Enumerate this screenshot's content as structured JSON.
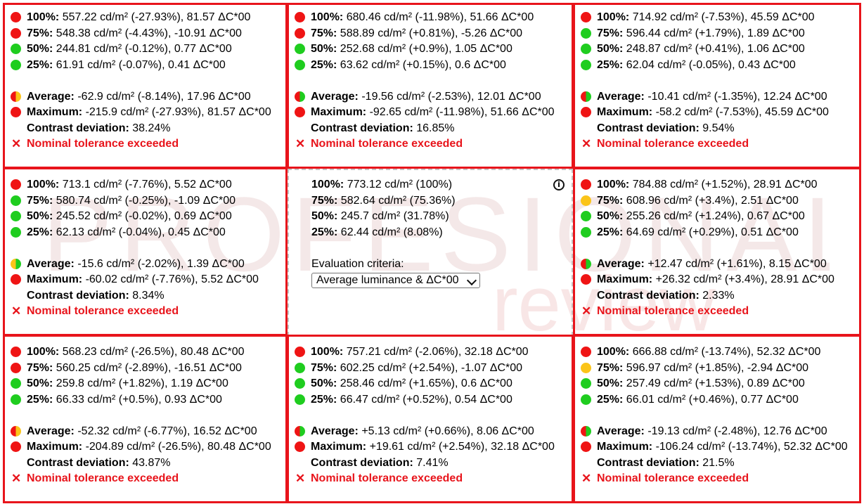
{
  "watermark": {
    "text": "PROFESIONAL",
    "subtext": "review"
  },
  "colors": {
    "fail": "#e8141b",
    "red": "#ef1414",
    "green": "#1fcd1f",
    "yellow": "#fbc419",
    "border": "#e8141b"
  },
  "cells": [
    {
      "id": "top-left",
      "rows": [
        {
          "status": "red",
          "label": "100%:",
          "value": " 557.22 cd/m² (-27.93%), 81.57 ΔC*00"
        },
        {
          "status": "red",
          "label": "75%:",
          "value": " 548.38 cd/m² (-4.43%), -10.91 ΔC*00"
        },
        {
          "status": "green",
          "label": "50%:",
          "value": " 244.81 cd/m² (-0.12%), 0.77 ΔC*00"
        },
        {
          "status": "green",
          "label": "25%:",
          "value": " 61.91 cd/m² (-0.07%), 0.41 ΔC*00"
        }
      ],
      "average": {
        "status": "split-ry",
        "label": "Average:",
        "value": " -62.9 cd/m² (-8.14%), 17.96 ΔC*00"
      },
      "maximum": {
        "status": "red",
        "label": "Maximum:",
        "value": " -215.9 cd/m² (-27.93%), 81.57 ΔC*00"
      },
      "contrast": {
        "label": "Contrast deviation:",
        "value": " 38.24%"
      },
      "verdict": "Nominal tolerance exceeded"
    },
    {
      "id": "top-center",
      "rows": [
        {
          "status": "red",
          "label": "100%:",
          "value": " 680.46 cd/m² (-11.98%), 51.66 ΔC*00"
        },
        {
          "status": "red",
          "label": "75%:",
          "value": " 588.89 cd/m² (+0.81%), -5.26 ΔC*00"
        },
        {
          "status": "green",
          "label": "50%:",
          "value": " 252.68 cd/m² (+0.9%), 1.05 ΔC*00"
        },
        {
          "status": "green",
          "label": "25%:",
          "value": " 63.62 cd/m² (+0.15%), 0.6 ΔC*00"
        }
      ],
      "average": {
        "status": "split-rg",
        "label": "Average:",
        "value": " -19.56 cd/m² (-2.53%), 12.01 ΔC*00"
      },
      "maximum": {
        "status": "red",
        "label": "Maximum:",
        "value": " -92.65 cd/m² (-11.98%), 51.66 ΔC*00"
      },
      "contrast": {
        "label": "Contrast deviation:",
        "value": " 16.85%"
      },
      "verdict": "Nominal tolerance exceeded"
    },
    {
      "id": "top-right",
      "rows": [
        {
          "status": "red",
          "label": "100%:",
          "value": " 714.92 cd/m² (-7.53%), 45.59 ΔC*00"
        },
        {
          "status": "green",
          "label": "75%:",
          "value": " 596.44 cd/m² (+1.79%), 1.89 ΔC*00"
        },
        {
          "status": "green",
          "label": "50%:",
          "value": " 248.87 cd/m² (+0.41%), 1.06 ΔC*00"
        },
        {
          "status": "green",
          "label": "25%:",
          "value": " 62.04 cd/m² (-0.05%), 0.43 ΔC*00"
        }
      ],
      "average": {
        "status": "split-rg",
        "label": "Average:",
        "value": " -10.41 cd/m² (-1.35%), 12.24 ΔC*00"
      },
      "maximum": {
        "status": "red",
        "label": "Maximum:",
        "value": " -58.2 cd/m² (-7.53%), 45.59 ΔC*00"
      },
      "contrast": {
        "label": "Contrast deviation:",
        "value": " 9.54%"
      },
      "verdict": "Nominal tolerance exceeded"
    },
    {
      "id": "middle-left",
      "rows": [
        {
          "status": "red",
          "label": "100%:",
          "value": " 713.1 cd/m² (-7.76%), 5.52 ΔC*00"
        },
        {
          "status": "green",
          "label": "75%:",
          "value": " 580.74 cd/m² (-0.25%), -1.09 ΔC*00"
        },
        {
          "status": "green",
          "label": "50%:",
          "value": " 245.52 cd/m² (-0.02%), 0.69 ΔC*00"
        },
        {
          "status": "green",
          "label": "25%:",
          "value": " 62.13 cd/m² (-0.04%), 0.45 ΔC*00"
        }
      ],
      "average": {
        "status": "split-yg",
        "label": "Average:",
        "value": " -15.6 cd/m² (-2.02%), 1.39 ΔC*00"
      },
      "maximum": {
        "status": "red",
        "label": "Maximum:",
        "value": " -60.02 cd/m² (-7.76%), 5.52 ΔC*00"
      },
      "contrast": {
        "label": "Contrast deviation:",
        "value": " 8.34%"
      },
      "verdict": "Nominal tolerance exceeded"
    },
    {
      "id": "middle-right",
      "rows": [
        {
          "status": "red",
          "label": "100%:",
          "value": " 784.88 cd/m² (+1.52%), 28.91 ΔC*00"
        },
        {
          "status": "yellow",
          "label": "75%:",
          "value": " 608.96 cd/m² (+3.4%), 2.51 ΔC*00"
        },
        {
          "status": "green",
          "label": "50%:",
          "value": " 255.26 cd/m² (+1.24%), 0.67 ΔC*00"
        },
        {
          "status": "green",
          "label": "25%:",
          "value": " 64.69 cd/m² (+0.29%), 0.51 ΔC*00"
        }
      ],
      "average": {
        "status": "split-rg",
        "label": "Average:",
        "value": " +12.47 cd/m² (+1.61%), 8.15 ΔC*00"
      },
      "maximum": {
        "status": "red",
        "label": "Maximum:",
        "value": " +26.32 cd/m² (+3.4%), 28.91 ΔC*00"
      },
      "contrast": {
        "label": "Contrast deviation:",
        "value": " 2.33%"
      },
      "verdict": "Nominal tolerance exceeded"
    },
    {
      "id": "bottom-left",
      "rows": [
        {
          "status": "red",
          "label": "100%:",
          "value": " 568.23 cd/m² (-26.5%), 80.48 ΔC*00"
        },
        {
          "status": "red",
          "label": "75%:",
          "value": " 560.25 cd/m² (-2.89%), -16.51 ΔC*00"
        },
        {
          "status": "green",
          "label": "50%:",
          "value": " 259.8 cd/m² (+1.82%), 1.19 ΔC*00"
        },
        {
          "status": "green",
          "label": "25%:",
          "value": " 66.33 cd/m² (+0.5%), 0.93 ΔC*00"
        }
      ],
      "average": {
        "status": "split-ry",
        "label": "Average:",
        "value": " -52.32 cd/m² (-6.77%), 16.52 ΔC*00"
      },
      "maximum": {
        "status": "red",
        "label": "Maximum:",
        "value": " -204.89 cd/m² (-26.5%), 80.48 ΔC*00"
      },
      "contrast": {
        "label": "Contrast deviation:",
        "value": " 43.87%"
      },
      "verdict": "Nominal tolerance exceeded"
    },
    {
      "id": "bottom-center",
      "rows": [
        {
          "status": "red",
          "label": "100%:",
          "value": " 757.21 cd/m² (-2.06%), 32.18 ΔC*00"
        },
        {
          "status": "green",
          "label": "75%:",
          "value": " 602.25 cd/m² (+2.54%), -1.07 ΔC*00"
        },
        {
          "status": "green",
          "label": "50%:",
          "value": " 258.46 cd/m² (+1.65%), 0.6 ΔC*00"
        },
        {
          "status": "green",
          "label": "25%:",
          "value": " 66.47 cd/m² (+0.52%), 0.54 ΔC*00"
        }
      ],
      "average": {
        "status": "split-rg",
        "label": "Average:",
        "value": " +5.13 cd/m² (+0.66%), 8.06 ΔC*00"
      },
      "maximum": {
        "status": "red",
        "label": "Maximum:",
        "value": " +19.61 cd/m² (+2.54%), 32.18 ΔC*00"
      },
      "contrast": {
        "label": "Contrast deviation:",
        "value": " 7.41%"
      },
      "verdict": "Nominal tolerance exceeded"
    },
    {
      "id": "bottom-right",
      "rows": [
        {
          "status": "red",
          "label": "100%:",
          "value": " 666.88 cd/m² (-13.74%), 52.32 ΔC*00"
        },
        {
          "status": "yellow",
          "label": "75%:",
          "value": " 596.97 cd/m² (+1.85%), -2.94 ΔC*00"
        },
        {
          "status": "green",
          "label": "50%:",
          "value": " 257.49 cd/m² (+1.53%), 0.89 ΔC*00"
        },
        {
          "status": "green",
          "label": "25%:",
          "value": " 66.01 cd/m² (+0.46%), 0.77 ΔC*00"
        }
      ],
      "average": {
        "status": "split-rg",
        "label": "Average:",
        "value": " -19.13 cd/m² (-2.48%), 12.76 ΔC*00"
      },
      "maximum": {
        "status": "red",
        "label": "Maximum:",
        "value": " -106.24 cd/m² (-13.74%), 52.32 ΔC*00"
      },
      "contrast": {
        "label": "Contrast deviation:",
        "value": " 21.5%"
      },
      "verdict": "Nominal tolerance exceeded"
    }
  ],
  "center": {
    "rows": [
      {
        "label": "100%:",
        "value": " 773.12 cd/m² (100%)"
      },
      {
        "label": "75%:",
        "value": " 582.64 cd/m² (75.36%)"
      },
      {
        "label": "50%:",
        "value": " 245.7 cd/m² (31.78%)"
      },
      {
        "label": "25%:",
        "value": " 62.44 cd/m² (8.08%)"
      }
    ],
    "info_icon": "info-icon",
    "info_glyph": "i",
    "criteria_label": "Evaluation criteria:",
    "criteria_selected": "Average luminance & ΔC*00"
  }
}
